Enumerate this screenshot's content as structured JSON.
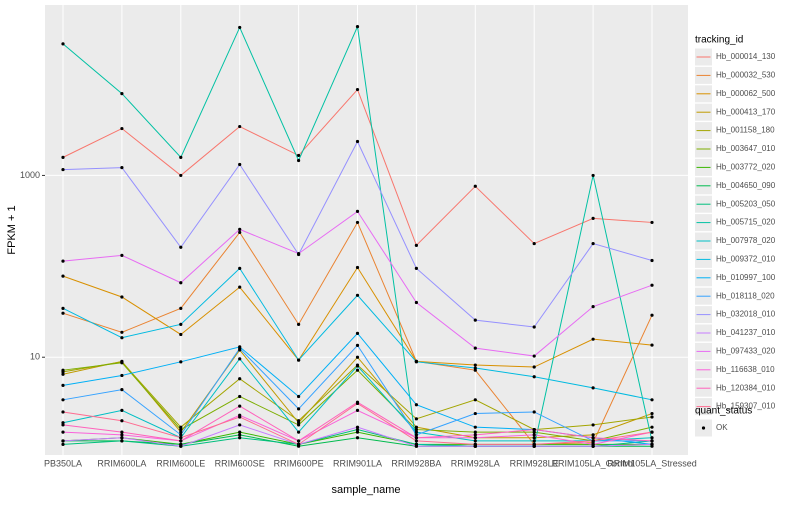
{
  "chart_data": {
    "type": "line",
    "x_label": "sample_name",
    "y_label": "FPKM + 1",
    "log_y": true,
    "grid": true,
    "legend_title": "tracking_id",
    "legend_position": "right",
    "shape_legend": {
      "title": "quant_status",
      "labels": [
        "OK"
      ]
    },
    "point_color": "#000000",
    "categories": [
      "PB350LA",
      "RRIM600LA",
      "RRIM600LE",
      "RRIM600SE",
      "RRIM600PE",
      "RRIM901LA",
      "RRIM928BA",
      "RRIM928LA",
      "RRIM928LE",
      "RRIM105LA_Control",
      "RRIM105LA_Stressed"
    ],
    "ylim": [
      0.84,
      75000
    ],
    "yticks": [
      10,
      1000
    ],
    "series": [
      {
        "name": "Hb_000014_130",
        "color": "#F8766D",
        "values": [
          1580,
          3280,
          1000,
          3450,
          1660,
          8810,
          170,
          760,
          178,
          337,
          304
        ]
      },
      {
        "name": "Hb_000032_530",
        "color": "#EA8331",
        "values": [
          30.5,
          18.8,
          34.5,
          236,
          23,
          304,
          9,
          7.2,
          1.1,
          1.15,
          29
        ]
      },
      {
        "name": "Hb_000062_500",
        "color": "#D89000",
        "values": [
          78,
          46,
          17.8,
          59,
          9.3,
          97,
          9,
          8.2,
          7.8,
          15.8,
          13.6
        ]
      },
      {
        "name": "Hb_000413_170",
        "color": "#C09B00",
        "values": [
          6.5,
          9,
          1.5,
          12,
          1.9,
          10,
          1.7,
          1.3,
          1.3,
          1.4,
          2.4
        ]
      },
      {
        "name": "Hb_001158_180",
        "color": "#A3A500",
        "values": [
          6.9,
          8.9,
          1.7,
          5.8,
          2,
          8.2,
          2.1,
          3.4,
          1.6,
          1.8,
          2.2
        ]
      },
      {
        "name": "Hb_003647_010",
        "color": "#7CAE00",
        "values": [
          7.2,
          8.7,
          1.6,
          3.7,
          1.8,
          7.2,
          1.6,
          1.5,
          1.5,
          1.2,
          1.7
        ]
      },
      {
        "name": "Hb_003772_020",
        "color": "#39B600",
        "values": [
          1.2,
          1.3,
          1.1,
          1.5,
          1.1,
          1.5,
          1.1,
          1.1,
          1.1,
          1.1,
          1.1
        ]
      },
      {
        "name": "Hb_004650_090",
        "color": "#00BB4E",
        "values": [
          1.2,
          1.2,
          1.1,
          1.4,
          1.05,
          1.3,
          1.05,
          1.05,
          1.05,
          1.05,
          1.05
        ]
      },
      {
        "name": "Hb_005203_050",
        "color": "#00BF7D",
        "values": [
          1.1,
          1.2,
          1.05,
          1.3,
          1.1,
          1.6,
          1.1,
          1.05,
          1.05,
          1.05,
          1.2
        ]
      },
      {
        "name": "Hb_005715_020",
        "color": "#00C1A3",
        "values": [
          28000,
          7950,
          1580,
          42500,
          1460,
          43400,
          1.1,
          1.05,
          1.05,
          1000,
          1.2
        ]
      },
      {
        "name": "Hb_007978_020",
        "color": "#00BFC4",
        "values": [
          1.9,
          2.6,
          1.3,
          9.6,
          1.5,
          8,
          1.5,
          1.2,
          1.2,
          1.2,
          1.3
        ]
      },
      {
        "name": "Hb_009372_010",
        "color": "#00BAE0",
        "values": [
          34.5,
          16.4,
          23,
          95,
          9.3,
          48,
          8.9,
          7.6,
          6.1,
          4.6,
          3.4
        ]
      },
      {
        "name": "Hb_010997_100",
        "color": "#00B0F6",
        "values": [
          4.9,
          6.3,
          8.9,
          13,
          3.7,
          18.3,
          3,
          1.7,
          1.6,
          1.3,
          1.1
        ]
      },
      {
        "name": "Hb_018118_020",
        "color": "#35A2FF",
        "values": [
          3.4,
          4.4,
          1.4,
          12.5,
          2.7,
          13.5,
          1.4,
          2.4,
          2.5,
          1.2,
          1.2
        ]
      },
      {
        "name": "Hb_032018_010",
        "color": "#9590FF",
        "values": [
          1160,
          1220,
          162,
          1320,
          135,
          2360,
          95,
          25.6,
          21.5,
          178,
          116
        ]
      },
      {
        "name": "Hb_041237_010",
        "color": "#C77CFF",
        "values": [
          1.2,
          1.3,
          1.05,
          1.8,
          1.1,
          1.7,
          1.05,
          1.05,
          1.05,
          1.05,
          1.1
        ]
      },
      {
        "name": "Hb_097433_020",
        "color": "#E76BF3",
        "values": [
          114,
          132,
          66,
          255,
          138,
          402,
          40,
          12.6,
          10.3,
          36,
          62
        ]
      },
      {
        "name": "Hb_116638_010",
        "color": "#FA62DB",
        "values": [
          1.5,
          1.4,
          1.2,
          2.3,
          1.2,
          2.6,
          1.3,
          1.3,
          1.4,
          1.1,
          1.5
        ]
      },
      {
        "name": "Hb_120384_010",
        "color": "#FF62BC",
        "values": [
          1.8,
          1.5,
          1.2,
          2.9,
          1.2,
          3.2,
          1.3,
          1.4,
          1.6,
          1.3,
          1.2
        ]
      },
      {
        "name": "Hb_159307_010",
        "color": "#FF6C91",
        "values": [
          2.5,
          2,
          1.3,
          2.2,
          1.1,
          3.1,
          1.2,
          1.1,
          1.1,
          1.2,
          1.5
        ]
      }
    ]
  }
}
